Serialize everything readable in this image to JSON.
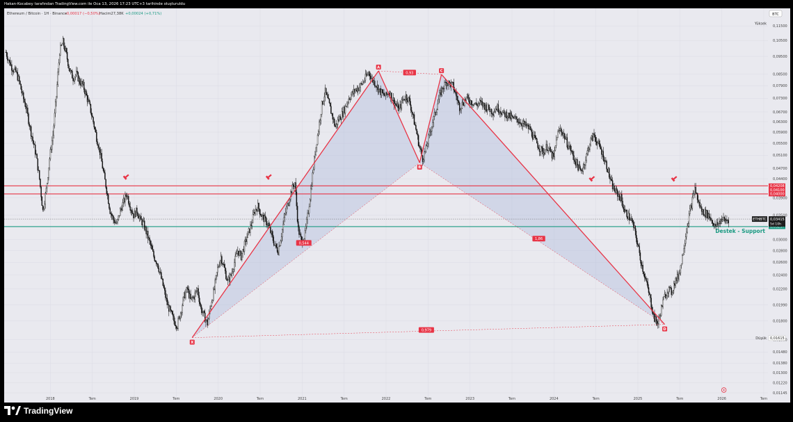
{
  "header": {
    "caption": "Hakan-Kocabey tarafından TradingView.com ile Oca 13, 2026 17:23 UTC+3 tarihinde oluşturuldu"
  },
  "legend": {
    "symbol_line": "Ethereum / Bitcoin · 1H · Binance",
    "change_text": "-0,00017 (−0,50%)",
    "volume_text": "Hacim27,38K",
    "volume_change": "+0,00024 (+0,71%)"
  },
  "scale": {
    "high_label": "Yüksek",
    "low_label": "Düşük",
    "currency": "BTC"
  },
  "brand": {
    "name": "TradingView"
  },
  "colors": {
    "pattern": "#e83446",
    "support": "#1a9a82",
    "candle": "#111111",
    "fill": "rgba(160,174,214,0.32)"
  },
  "chart_data": {
    "type": "line",
    "series": [
      {
        "values": [
          0.0975,
          0.092,
          0.088,
          0.086,
          0.081,
          0.074,
          0.069,
          0.062,
          0.056,
          0.051,
          0.044,
          0.036,
          0.041,
          0.05,
          0.058,
          0.074,
          0.098,
          0.104,
          0.096,
          0.087,
          0.083,
          0.085,
          0.081,
          0.079,
          0.074,
          0.069,
          0.063,
          0.057,
          0.052,
          0.046,
          0.041,
          0.036,
          0.034,
          0.033,
          0.036,
          0.038,
          0.04,
          0.037,
          0.035,
          0.036,
          0.034,
          0.033,
          0.031,
          0.029,
          0.027,
          0.026,
          0.024,
          0.022,
          0.02,
          0.019,
          0.018,
          0.0175,
          0.019,
          0.021,
          0.022,
          0.0205,
          0.021,
          0.022,
          0.0195,
          0.0185,
          0.0177,
          0.02,
          0.022,
          0.025,
          0.027,
          0.025,
          0.023,
          0.024,
          0.026,
          0.028,
          0.027,
          0.029,
          0.031,
          0.033,
          0.036,
          0.037,
          0.035,
          0.034,
          0.033,
          0.031,
          0.029,
          0.028,
          0.031,
          0.035,
          0.038,
          0.041,
          0.043,
          0.032,
          0.0295,
          0.031,
          0.036,
          0.043,
          0.052,
          0.06,
          0.07,
          0.076,
          0.071,
          0.066,
          0.061,
          0.064,
          0.066,
          0.069,
          0.073,
          0.075,
          0.077,
          0.078,
          0.08,
          0.083,
          0.086,
          0.082,
          0.08,
          0.077,
          0.075,
          0.074,
          0.076,
          0.073,
          0.07,
          0.068,
          0.072,
          0.074,
          0.072,
          0.066,
          0.06,
          0.054,
          0.05,
          0.053,
          0.058,
          0.063,
          0.068,
          0.074,
          0.078,
          0.081,
          0.08,
          0.079,
          0.074,
          0.069,
          0.071,
          0.073,
          0.072,
          0.071,
          0.07,
          0.071,
          0.07,
          0.069,
          0.068,
          0.067,
          0.069,
          0.068,
          0.066,
          0.066,
          0.065,
          0.064,
          0.064,
          0.063,
          0.062,
          0.061,
          0.06,
          0.057,
          0.055,
          0.053,
          0.052,
          0.054,
          0.052,
          0.05,
          0.058,
          0.06,
          0.058,
          0.055,
          0.053,
          0.05,
          0.048,
          0.046,
          0.048,
          0.052,
          0.056,
          0.058,
          0.055,
          0.053,
          0.05,
          0.047,
          0.043,
          0.041,
          0.04,
          0.039,
          0.036,
          0.035,
          0.034,
          0.032,
          0.029,
          0.026,
          0.024,
          0.022,
          0.02,
          0.0182,
          0.0177,
          0.0195,
          0.021,
          0.022,
          0.0215,
          0.023,
          0.0238,
          0.026,
          0.03,
          0.034,
          0.0375,
          0.0415,
          0.038,
          0.036,
          0.0355,
          0.035,
          0.034,
          0.0325,
          0.0332,
          0.0342,
          0.0338,
          0.0341
        ]
      }
    ],
    "x_range": [
      2017.45,
      2026.55
    ],
    "ylim": [
      0.01145,
      0.11775
    ],
    "log_scale": true,
    "x_ticks": [
      {
        "x": 2018.0,
        "label": "2018"
      },
      {
        "x": 2018.5,
        "label": "Tem"
      },
      {
        "x": 2019.0,
        "label": "2019"
      },
      {
        "x": 2019.5,
        "label": "Tem"
      },
      {
        "x": 2020.0,
        "label": "2020"
      },
      {
        "x": 2020.5,
        "label": "Tem"
      },
      {
        "x": 2021.0,
        "label": "2021"
      },
      {
        "x": 2021.5,
        "label": "Tem"
      },
      {
        "x": 2022.0,
        "label": "2022"
      },
      {
        "x": 2022.5,
        "label": "Tem"
      },
      {
        "x": 2023.0,
        "label": "2023"
      },
      {
        "x": 2023.5,
        "label": "Tem"
      },
      {
        "x": 2024.0,
        "label": "2024"
      },
      {
        "x": 2024.5,
        "label": "Tem"
      },
      {
        "x": 2025.0,
        "label": "2025"
      },
      {
        "x": 2025.5,
        "label": "Tem"
      },
      {
        "x": 2026.0,
        "label": "2026"
      },
      {
        "x": 2026.5,
        "label": "Tem"
      }
    ],
    "y_ticks": [
      {
        "y": 0.115,
        "label": "0,11500"
      },
      {
        "y": 0.105,
        "label": "0,10500"
      },
      {
        "y": 0.095,
        "label": "0,09500"
      },
      {
        "y": 0.085,
        "label": "0,08500"
      },
      {
        "y": 0.079,
        "label": "0,07900"
      },
      {
        "y": 0.073,
        "label": "0,07300"
      },
      {
        "y": 0.067,
        "label": "0,06700"
      },
      {
        "y": 0.063,
        "label": "0,06300"
      },
      {
        "y": 0.059,
        "label": "0,05900"
      },
      {
        "y": 0.055,
        "label": "0,05500"
      },
      {
        "y": 0.051,
        "label": "0,05100"
      },
      {
        "y": 0.047,
        "label": "0,04700"
      },
      {
        "y": 0.044,
        "label": "0,04400"
      },
      {
        "y": 0.039,
        "label": "0,03900"
      },
      {
        "y": 0.035,
        "label": "0,03500"
      },
      {
        "y": 0.03,
        "label": "0,03000"
      },
      {
        "y": 0.028,
        "label": "0,02800"
      },
      {
        "y": 0.026,
        "label": "0,02600"
      },
      {
        "y": 0.024,
        "label": "0,02400"
      },
      {
        "y": 0.022,
        "label": "0,02200"
      },
      {
        "y": 0.0199,
        "label": "0,01990"
      },
      {
        "y": 0.018,
        "label": "0,01800"
      },
      {
        "y": 0.016,
        "label": "0,01600"
      },
      {
        "y": 0.0148,
        "label": "0,01480"
      },
      {
        "y": 0.0138,
        "label": "0,01380"
      },
      {
        "y": 0.013,
        "label": "0,01300"
      },
      {
        "y": 0.0122,
        "label": "0,01220"
      },
      {
        "y": 0.01145,
        "label": "0,01145"
      }
    ],
    "harmonic_points": [
      {
        "label": "X",
        "x": 2019.69,
        "y": 0.0162
      },
      {
        "label": "A",
        "x": 2021.91,
        "y": 0.0867
      },
      {
        "label": "B",
        "x": 2022.4,
        "y": 0.0487
      },
      {
        "label": "C",
        "x": 2022.66,
        "y": 0.0848
      },
      {
        "label": "D",
        "x": 2025.32,
        "y": 0.0176
      }
    ],
    "ratio_labels": [
      {
        "text": "0,93",
        "x": 2022.28,
        "y": 0.0858
      },
      {
        "text": "0,544",
        "x": 2021.02,
        "y": 0.0294
      },
      {
        "text": "1,86",
        "x": 2023.82,
        "y": 0.0302
      },
      {
        "text": "0,979",
        "x": 2022.48,
        "y": 0.017
      }
    ],
    "resistance_levels": [
      0.04208,
      0.04
    ],
    "support_level": {
      "y": 0.03257,
      "label": "Destek - Support"
    },
    "price_line": 0.03415,
    "price_labels": [
      {
        "text": "0,04208",
        "y": 0.04208
      },
      {
        "text": "0,04100",
        "y": 0.041
      },
      {
        "text": "0,04000",
        "y": 0.04
      },
      {
        "text": "0,03257",
        "y": 0.03257
      }
    ],
    "last_price": {
      "symbol": "ETHBTC",
      "value": "0,03415",
      "countdown": "5d 10h"
    },
    "high_price": {
      "value": "0,11500"
    },
    "low_price": {
      "value": "0,01615"
    },
    "tops_markers": [
      {
        "x": 2018.9,
        "y": 0.0445
      },
      {
        "x": 2020.6,
        "y": 0.0445
      },
      {
        "x": 2024.45,
        "y": 0.044
      },
      {
        "x": 2025.43,
        "y": 0.044
      }
    ]
  }
}
